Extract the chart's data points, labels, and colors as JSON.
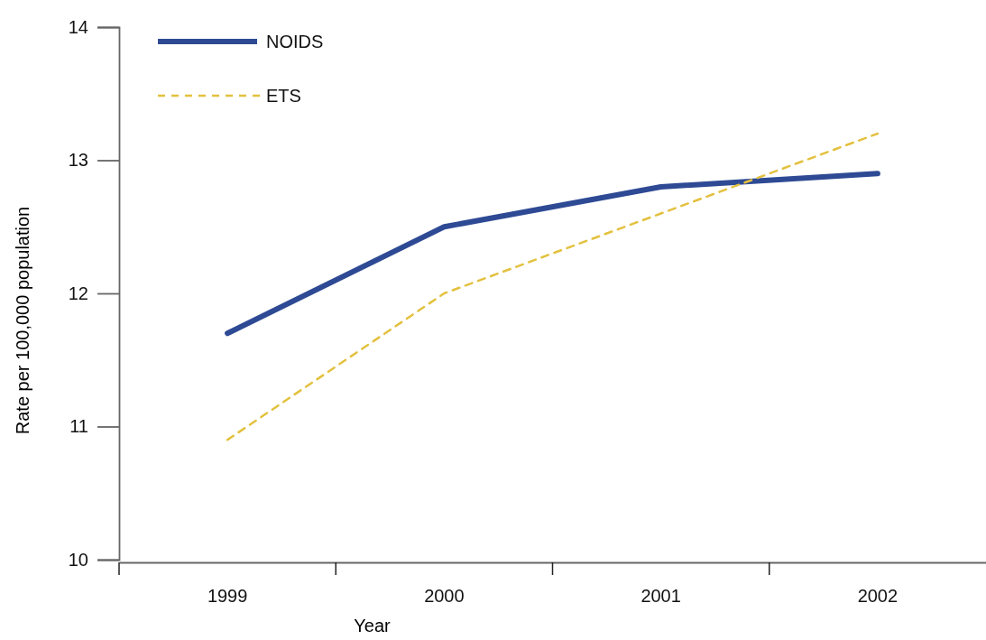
{
  "chart_data": {
    "type": "line",
    "xlabel": "Year",
    "ylabel": "Rate per 100,000 population",
    "categories": [
      "1999",
      "2000",
      "2001",
      "2002"
    ],
    "series": [
      {
        "name": "NOIDS",
        "color": "#2e4a94",
        "values": [
          11.7,
          12.5,
          12.8,
          12.9
        ],
        "line_style": "solid"
      },
      {
        "name": "ETS",
        "color": "#e3c13f",
        "values": [
          10.9,
          12.0,
          12.6,
          13.2
        ],
        "line_style": "dashed"
      }
    ],
    "ylim": [
      10,
      14
    ],
    "yticks": [
      10,
      11,
      12,
      13,
      14
    ],
    "legend": "top left",
    "grid": false,
    "marker": "none"
  }
}
